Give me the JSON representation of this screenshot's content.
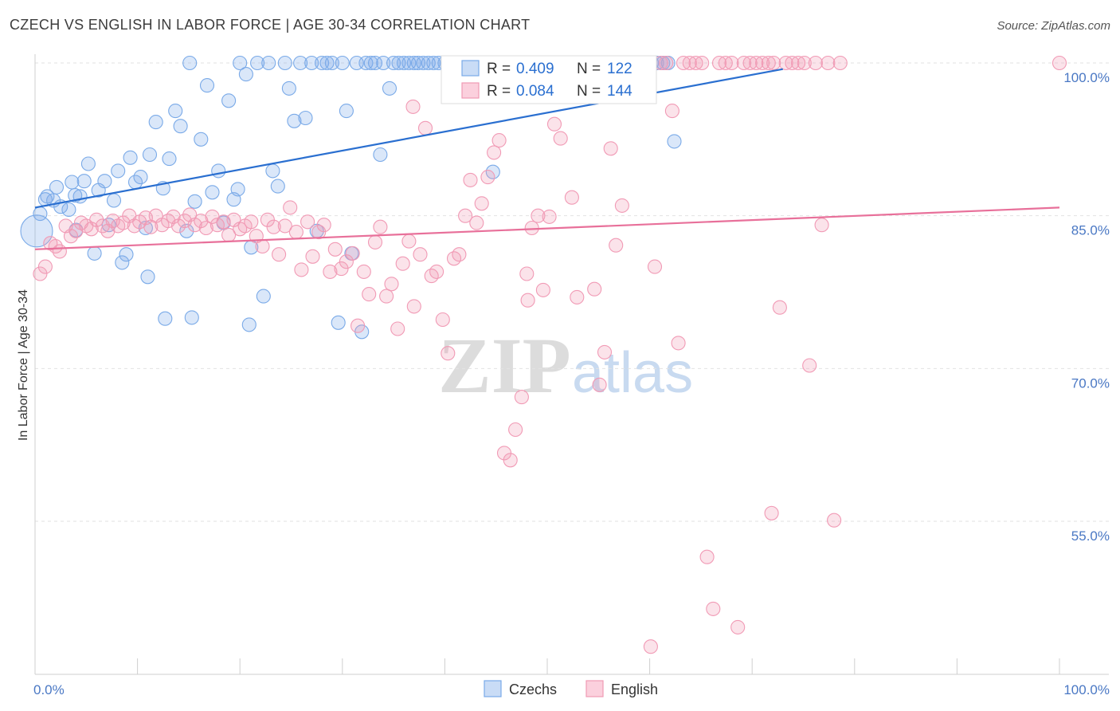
{
  "title": "CZECH VS ENGLISH IN LABOR FORCE | AGE 30-34 CORRELATION CHART",
  "source": "Source: ZipAtlas.com",
  "watermark": {
    "zip": "ZIP",
    "atlas": "atlas"
  },
  "legend": {
    "r_label": "R =",
    "n_label": "N =",
    "rows": [
      {
        "name": "Czechs",
        "r": "0.409",
        "n": "122",
        "color": "#7aaae8"
      },
      {
        "name": "English",
        "r": "0.084",
        "n": "144",
        "color": "#f19ab5"
      }
    ]
  },
  "chart_data": {
    "type": "scatter",
    "title": "CZECH VS ENGLISH IN LABOR FORCE | AGE 30-34 CORRELATION CHART",
    "xlabel": "",
    "ylabel": "In Labor Force | Age 30-34",
    "xlim": [
      0,
      100
    ],
    "ylim": [
      40,
      102
    ],
    "x_tick_labels": [
      "0.0%",
      "100.0%"
    ],
    "y_ticks": [
      100,
      85,
      70,
      55
    ],
    "y_tick_labels": [
      "100.0%",
      "85.0%",
      "70.0%",
      "55.0%"
    ],
    "grid": true,
    "series": [
      {
        "name": "Czechs",
        "color": "#7aaae8",
        "line_color": "#2a6fd0",
        "trend": {
          "x": [
            0,
            73
          ],
          "y": [
            85.8,
            99.4
          ]
        },
        "points": [
          [
            0.5,
            85.2
          ],
          [
            1.2,
            86.9
          ],
          [
            1.8,
            86.5
          ],
          [
            2.1,
            87.8
          ],
          [
            2.5,
            85.9
          ],
          [
            3.3,
            85.6
          ],
          [
            3.6,
            88.3
          ],
          [
            4.0,
            83.6
          ],
          [
            4.4,
            86.9
          ],
          [
            4.8,
            88.4
          ],
          [
            5.2,
            90.1
          ],
          [
            5.8,
            81.3
          ],
          [
            6.2,
            87.5
          ],
          [
            6.8,
            88.4
          ],
          [
            7.2,
            84.1
          ],
          [
            7.7,
            86.5
          ],
          [
            8.1,
            89.4
          ],
          [
            8.5,
            80.4
          ],
          [
            8.9,
            81.2
          ],
          [
            9.3,
            90.7
          ],
          [
            9.8,
            88.3
          ],
          [
            10.3,
            88.8
          ],
          [
            10.8,
            83.8
          ],
          [
            11.2,
            91.0
          ],
          [
            11.8,
            94.2
          ],
          [
            12.5,
            87.7
          ],
          [
            13.1,
            90.6
          ],
          [
            13.7,
            95.3
          ],
          [
            14.2,
            93.8
          ],
          [
            14.8,
            83.5
          ],
          [
            15.1,
            100
          ],
          [
            15.6,
            86.4
          ],
          [
            16.2,
            92.5
          ],
          [
            16.8,
            97.8
          ],
          [
            17.3,
            87.3
          ],
          [
            17.9,
            89.4
          ],
          [
            18.4,
            84.3
          ],
          [
            18.9,
            96.3
          ],
          [
            19.4,
            86.6
          ],
          [
            19.8,
            87.6
          ],
          [
            20.0,
            100
          ],
          [
            20.6,
            98.9
          ],
          [
            21.1,
            81.9
          ],
          [
            21.7,
            100
          ],
          [
            22.3,
            77.1
          ],
          [
            22.8,
            100
          ],
          [
            23.2,
            89.4
          ],
          [
            23.7,
            87.9
          ],
          [
            24.4,
            100
          ],
          [
            24.8,
            97.5
          ],
          [
            25.3,
            94.3
          ],
          [
            25.9,
            100
          ],
          [
            26.4,
            94.6
          ],
          [
            27.0,
            100
          ],
          [
            27.5,
            83.5
          ],
          [
            28.0,
            100
          ],
          [
            28.5,
            100
          ],
          [
            29.0,
            100
          ],
          [
            29.6,
            74.5
          ],
          [
            30.0,
            100
          ],
          [
            30.4,
            95.3
          ],
          [
            30.9,
            81.3
          ],
          [
            31.4,
            100
          ],
          [
            31.9,
            73.6
          ],
          [
            32.3,
            100
          ],
          [
            32.8,
            100
          ],
          [
            33.2,
            100
          ],
          [
            33.7,
            91.0
          ],
          [
            34.0,
            100
          ],
          [
            34.6,
            97.5
          ],
          [
            35.0,
            100
          ],
          [
            35.5,
            100
          ],
          [
            36.0,
            100
          ],
          [
            36.5,
            100
          ],
          [
            37.0,
            100
          ],
          [
            37.4,
            100
          ],
          [
            37.9,
            100
          ],
          [
            38.4,
            100
          ],
          [
            38.9,
            100
          ],
          [
            39.4,
            100
          ],
          [
            40.0,
            100
          ],
          [
            40.5,
            100
          ],
          [
            41.1,
            100
          ],
          [
            41.7,
            100
          ],
          [
            42.4,
            100
          ],
          [
            43.0,
            100
          ],
          [
            43.5,
            100
          ],
          [
            44.1,
            100
          ],
          [
            44.7,
            89.3
          ],
          [
            45.4,
            100
          ],
          [
            46.0,
            100
          ],
          [
            46.5,
            100
          ],
          [
            47.2,
            100
          ],
          [
            47.8,
            100
          ],
          [
            48.3,
            100
          ],
          [
            48.9,
            100
          ],
          [
            49.4,
            100
          ],
          [
            50.0,
            100
          ],
          [
            50.6,
            100
          ],
          [
            51.2,
            100
          ],
          [
            51.7,
            100
          ],
          [
            52.3,
            100
          ],
          [
            52.9,
            100
          ],
          [
            53.5,
            100
          ],
          [
            54.0,
            100
          ],
          [
            54.6,
            100
          ],
          [
            55.2,
            100
          ],
          [
            55.7,
            100
          ],
          [
            56.3,
            100
          ],
          [
            56.9,
            100
          ],
          [
            57.4,
            100
          ],
          [
            58.0,
            100
          ],
          [
            58.5,
            100
          ],
          [
            59.1,
            100
          ],
          [
            59.6,
            100
          ],
          [
            60.2,
            100
          ],
          [
            60.7,
            100
          ],
          [
            61.3,
            100
          ],
          [
            61.8,
            100
          ],
          [
            62.4,
            92.3
          ],
          [
            1.0,
            86.6
          ],
          [
            3.9,
            87.0
          ],
          [
            11.0,
            79.0
          ],
          [
            12.7,
            74.9
          ],
          [
            15.3,
            75.0
          ],
          [
            20.9,
            74.3
          ]
        ]
      },
      {
        "name": "English",
        "color": "#f19ab5",
        "line_color": "#e8709a",
        "trend": {
          "x": [
            0,
            100
          ],
          "y": [
            81.7,
            85.8
          ]
        },
        "points": [
          [
            0.5,
            79.3
          ],
          [
            1.0,
            80.0
          ],
          [
            1.5,
            82.3
          ],
          [
            2.0,
            82.0
          ],
          [
            2.4,
            81.5
          ],
          [
            3.0,
            84.0
          ],
          [
            3.5,
            83.0
          ],
          [
            4.0,
            83.5
          ],
          [
            4.5,
            84.3
          ],
          [
            5.0,
            84.0
          ],
          [
            5.5,
            83.7
          ],
          [
            6.0,
            84.6
          ],
          [
            6.6,
            84.0
          ],
          [
            7.1,
            83.5
          ],
          [
            7.6,
            84.5
          ],
          [
            8.1,
            84.0
          ],
          [
            8.6,
            84.3
          ],
          [
            9.2,
            85.0
          ],
          [
            9.7,
            84.0
          ],
          [
            10.2,
            84.4
          ],
          [
            10.8,
            84.8
          ],
          [
            11.3,
            83.9
          ],
          [
            11.8,
            85.0
          ],
          [
            12.4,
            84.1
          ],
          [
            13.0,
            84.5
          ],
          [
            13.5,
            84.9
          ],
          [
            14.0,
            84.0
          ],
          [
            14.6,
            84.5
          ],
          [
            15.1,
            85.1
          ],
          [
            15.6,
            84.1
          ],
          [
            16.2,
            84.5
          ],
          [
            16.7,
            83.8
          ],
          [
            17.3,
            84.9
          ],
          [
            17.8,
            84.1
          ],
          [
            18.4,
            84.4
          ],
          [
            18.9,
            83.1
          ],
          [
            19.4,
            84.6
          ],
          [
            20.0,
            83.7
          ],
          [
            20.5,
            84.0
          ],
          [
            21.1,
            84.4
          ],
          [
            21.6,
            83.0
          ],
          [
            22.2,
            82.0
          ],
          [
            22.7,
            84.6
          ],
          [
            23.3,
            83.9
          ],
          [
            23.8,
            81.2
          ],
          [
            24.4,
            84.0
          ],
          [
            24.9,
            85.8
          ],
          [
            25.5,
            83.4
          ],
          [
            26.0,
            79.7
          ],
          [
            26.6,
            84.4
          ],
          [
            27.1,
            81.0
          ],
          [
            27.7,
            83.4
          ],
          [
            28.2,
            84.1
          ],
          [
            28.8,
            79.5
          ],
          [
            29.3,
            81.7
          ],
          [
            29.9,
            79.8
          ],
          [
            30.4,
            80.5
          ],
          [
            31.0,
            81.3
          ],
          [
            31.5,
            74.2
          ],
          [
            32.1,
            79.5
          ],
          [
            32.6,
            77.3
          ],
          [
            33.2,
            82.4
          ],
          [
            33.7,
            83.9
          ],
          [
            34.3,
            77.1
          ],
          [
            34.8,
            78.3
          ],
          [
            35.4,
            73.9
          ],
          [
            35.9,
            80.3
          ],
          [
            36.5,
            82.5
          ],
          [
            37.0,
            76.1
          ],
          [
            37.6,
            81.2
          ],
          [
            38.1,
            93.6
          ],
          [
            38.7,
            79.1
          ],
          [
            39.2,
            79.5
          ],
          [
            39.8,
            74.8
          ],
          [
            40.3,
            71.5
          ],
          [
            40.9,
            80.8
          ],
          [
            41.4,
            81.2
          ],
          [
            42.0,
            85.0
          ],
          [
            42.5,
            88.5
          ],
          [
            43.1,
            84.3
          ],
          [
            43.6,
            86.2
          ],
          [
            44.2,
            88.8
          ],
          [
            44.8,
            91.2
          ],
          [
            45.3,
            92.4
          ],
          [
            45.8,
            61.7
          ],
          [
            46.4,
            61.0
          ],
          [
            46.9,
            64.0
          ],
          [
            47.5,
            67.2
          ],
          [
            48.0,
            79.3
          ],
          [
            48.5,
            83.8
          ],
          [
            49.1,
            85.0
          ],
          [
            49.6,
            77.7
          ],
          [
            50.2,
            84.9
          ],
          [
            50.7,
            94.0
          ],
          [
            51.3,
            92.6
          ],
          [
            51.8,
            100
          ],
          [
            52.4,
            86.8
          ],
          [
            52.9,
            77.0
          ],
          [
            53.5,
            100
          ],
          [
            54.0,
            100
          ],
          [
            54.6,
            77.8
          ],
          [
            55.1,
            68.4
          ],
          [
            55.6,
            71.6
          ],
          [
            56.2,
            91.6
          ],
          [
            56.7,
            82.1
          ],
          [
            57.3,
            86.0
          ],
          [
            57.8,
            100
          ],
          [
            58.4,
            100
          ],
          [
            58.9,
            100
          ],
          [
            59.5,
            100
          ],
          [
            60.0,
            99.3
          ],
          [
            60.5,
            80.0
          ],
          [
            61.1,
            100
          ],
          [
            61.6,
            100
          ],
          [
            62.2,
            95.3
          ],
          [
            62.8,
            72.5
          ],
          [
            63.3,
            100
          ],
          [
            63.9,
            100
          ],
          [
            64.5,
            100
          ],
          [
            65.1,
            100
          ],
          [
            65.6,
            51.5
          ],
          [
            66.2,
            46.4
          ],
          [
            66.8,
            100
          ],
          [
            67.4,
            100
          ],
          [
            68.0,
            100
          ],
          [
            68.6,
            44.6
          ],
          [
            69.2,
            100
          ],
          [
            69.8,
            100
          ],
          [
            70.4,
            100
          ],
          [
            71.0,
            100
          ],
          [
            71.6,
            100
          ],
          [
            72.1,
            100
          ],
          [
            72.7,
            76.0
          ],
          [
            73.3,
            100
          ],
          [
            73.9,
            100
          ],
          [
            74.5,
            100
          ],
          [
            75.1,
            100
          ],
          [
            75.6,
            70.3
          ],
          [
            76.2,
            100
          ],
          [
            76.8,
            84.1
          ],
          [
            77.4,
            100
          ],
          [
            78.0,
            55.1
          ],
          [
            78.6,
            100
          ],
          [
            100.0,
            100
          ],
          [
            71.9,
            55.8
          ],
          [
            60.1,
            42.7
          ],
          [
            36.9,
            95.7
          ],
          [
            48.1,
            76.7
          ]
        ]
      }
    ]
  }
}
